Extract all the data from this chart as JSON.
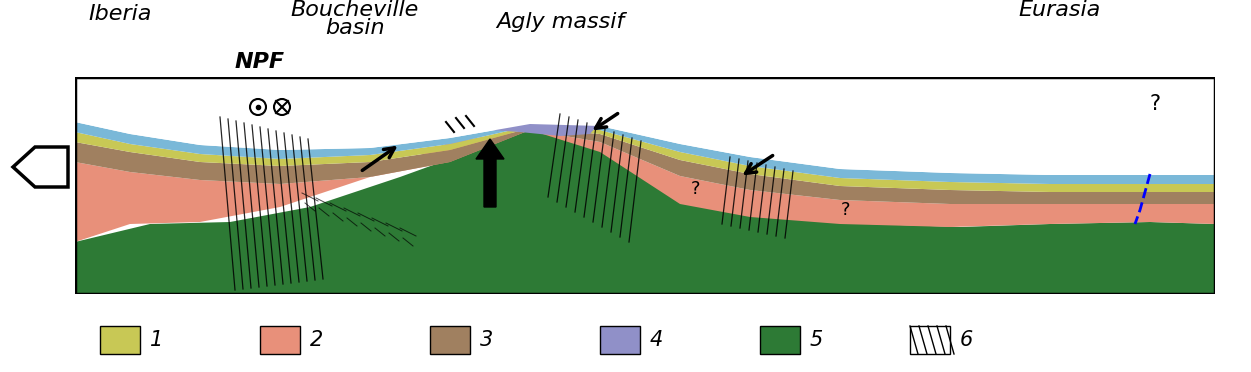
{
  "colors": {
    "salmon_pink": "#e8907a",
    "tan_brown": "#a08060",
    "yellow_green": "#c8c855",
    "lavender": "#9090c8",
    "dark_green": "#2d7a35",
    "light_blue": "#7ab8d8",
    "med_green": "#5a9a5a",
    "background": "#ffffff"
  },
  "labels": {
    "iberia": "Iberia",
    "boucheville_line1": "Boucheville",
    "boucheville_line2": "basin",
    "agly": "Agly massif",
    "eurasia": "Eurasia",
    "npf": "NPF"
  }
}
